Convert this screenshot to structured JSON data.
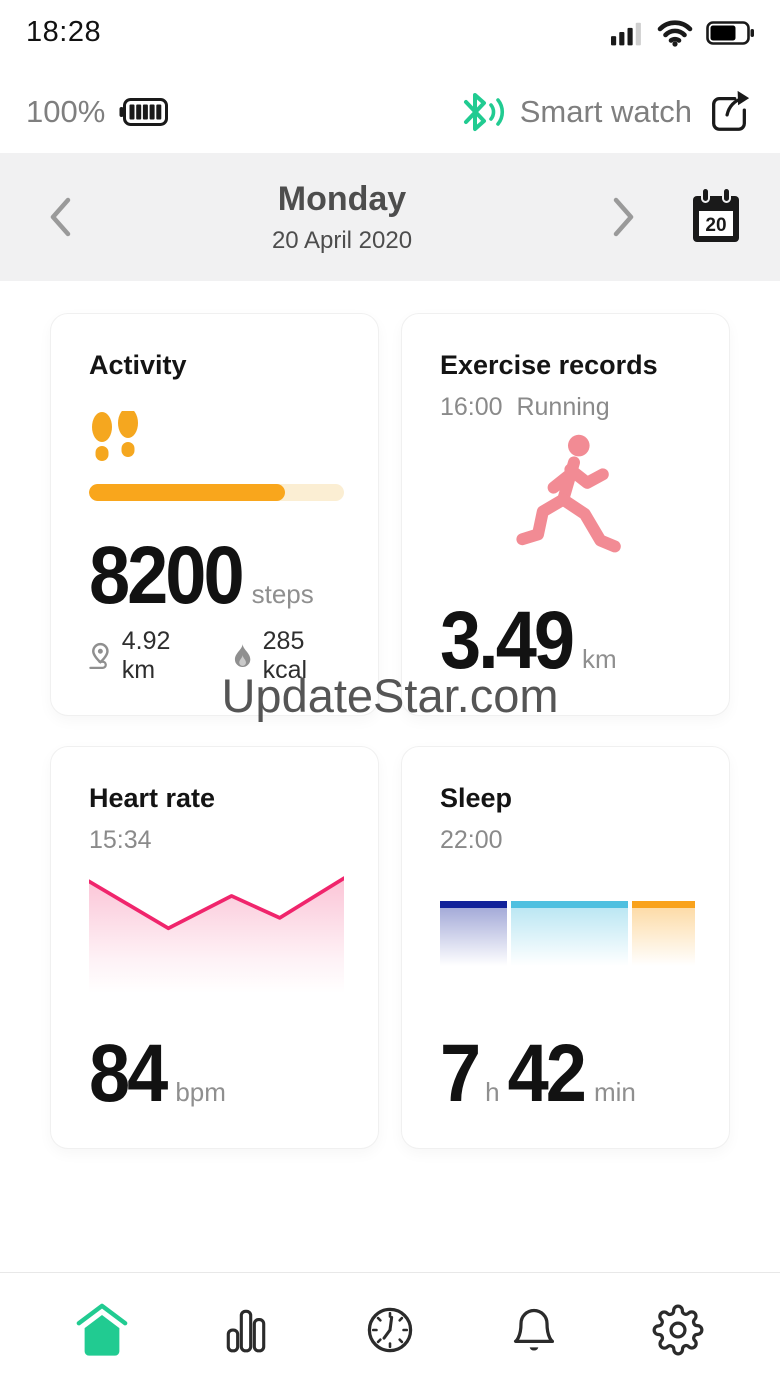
{
  "status_bar": {
    "time": "18:28"
  },
  "header": {
    "watch_battery_percent": "100%",
    "device_label": "Smart watch"
  },
  "date_nav": {
    "weekday": "Monday",
    "date": "20 April 2020",
    "calendar_day": "20"
  },
  "watermark": "UpdateStar.com",
  "activity": {
    "title": "Activity",
    "steps_value": "8200",
    "steps_unit": "steps",
    "goal_progress_percent": 77,
    "distance_value": "4.92 km",
    "calories_value": "285 kcal"
  },
  "exercise": {
    "title": "Exercise records",
    "session_time": "16:00",
    "session_type": "Running",
    "distance_value": "3.49",
    "distance_unit": "km"
  },
  "heart_rate": {
    "title": "Heart rate",
    "last_reading_time": "15:34",
    "value": "84",
    "unit": "bpm",
    "sparkline_points": [
      [
        0,
        8
      ],
      [
        79,
        53
      ],
      [
        142,
        22
      ],
      [
        190,
        43
      ],
      [
        254,
        5
      ]
    ]
  },
  "sleep": {
    "title": "Sleep",
    "start_time": "22:00",
    "hours_value": "7",
    "hours_unit": "h",
    "minutes_value": "42",
    "minutes_unit": "min",
    "segments": [
      {
        "name": "deep-sleep",
        "percent": 26.5,
        "color": "#12229a"
      },
      {
        "name": "light-sleep",
        "percent": 46.5,
        "color": "#4fc0e0"
      },
      {
        "name": "awake",
        "percent": 25.0,
        "color": "#f9a21b"
      }
    ]
  },
  "colors": {
    "accent_green": "#21cb91",
    "activity_orange": "#f9a61c",
    "runner_pink": "#f28b94",
    "heart_pink": "#f0256c"
  },
  "nav": {
    "items": [
      "home",
      "stats",
      "history",
      "notifications",
      "settings"
    ]
  }
}
